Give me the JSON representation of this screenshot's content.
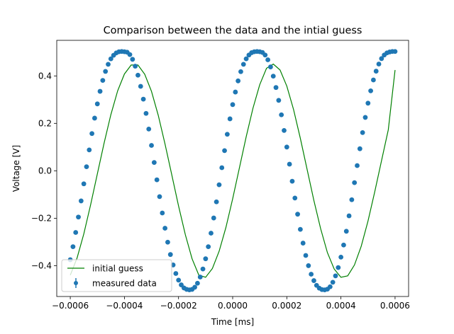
{
  "chart_data": {
    "type": "line",
    "title": "Comparison between the data and the intial guess",
    "xlabel": "Time [ms]",
    "ylabel": "Voltage [V]",
    "xlim": [
      -0.00065,
      0.00065
    ],
    "ylim": [
      -0.53,
      0.55
    ],
    "xticks": [
      -0.0006,
      -0.0004,
      -0.0002,
      0.0,
      0.0002,
      0.0004,
      0.0006
    ],
    "xtick_labels": [
      "−0.0006",
      "−0.0004",
      "−0.0002",
      "0.0000",
      "0.0002",
      "0.0004",
      "0.0006"
    ],
    "yticks": [
      -0.4,
      -0.2,
      0.0,
      0.2,
      0.4
    ],
    "ytick_labels": [
      "−0.4",
      "−0.2",
      "0.0",
      "0.2",
      "0.4"
    ],
    "grid": false,
    "legend_position": "lower-left",
    "series": [
      {
        "name": "initial guess",
        "kind": "line",
        "color": "#008000",
        "x": [
          -0.0006,
          -0.000575,
          -0.00055,
          -0.000525,
          -0.0005,
          -0.000475,
          -0.00045,
          -0.000425,
          -0.0004,
          -0.000375,
          -0.00035,
          -0.000325,
          -0.0003,
          -0.000275,
          -0.00025,
          -0.000225,
          -0.0002,
          -0.000175,
          -0.00015,
          -0.000125,
          -0.0001,
          -7.5e-05,
          -5e-05,
          -2.5e-05,
          0.0,
          2.5e-05,
          5e-05,
          7.5e-05,
          0.0001,
          0.000125,
          0.00015,
          0.000175,
          0.0002,
          0.000225,
          0.00025,
          0.000275,
          0.0003,
          0.000325,
          0.00035,
          0.000375,
          0.0004,
          0.000425,
          0.00045,
          0.000475,
          0.0005,
          0.000525,
          0.00055,
          0.000575,
          0.0006
        ],
        "y": [
          -0.44,
          -0.368,
          -0.266,
          -0.144,
          -0.013,
          0.117,
          0.237,
          0.337,
          0.408,
          0.446,
          0.446,
          0.407,
          0.335,
          0.234,
          0.113,
          -0.017,
          -0.148,
          -0.269,
          -0.371,
          -0.44,
          -0.449,
          -0.412,
          -0.339,
          -0.239,
          -0.118,
          0.013,
          0.144,
          0.264,
          0.363,
          0.432,
          0.45,
          0.425,
          0.357,
          0.258,
          0.137,
          0.006,
          -0.125,
          -0.244,
          -0.345,
          -0.414,
          -0.449,
          -0.443,
          -0.397,
          -0.318,
          -0.212,
          -0.088,
          0.043,
          0.173,
          0.425
        ]
      },
      {
        "name": "measured data",
        "kind": "errorbar-points",
        "color": "#1f77b4",
        "x": [
          -0.0006,
          -0.00059,
          -0.00058,
          -0.00057,
          -0.00056,
          -0.00055,
          -0.00054,
          -0.00053,
          -0.00052,
          -0.00051,
          -0.0005,
          -0.00049,
          -0.00048,
          -0.00047,
          -0.00046,
          -0.00045,
          -0.00044,
          -0.00043,
          -0.00042,
          -0.00041,
          -0.0004,
          -0.00039,
          -0.00038,
          -0.00037,
          -0.00036,
          -0.00035,
          -0.00034,
          -0.00033,
          -0.00032,
          -0.00031,
          -0.0003,
          -0.00029,
          -0.00028,
          -0.00027,
          -0.00026,
          -0.00025,
          -0.00024,
          -0.00023,
          -0.00022,
          -0.00021,
          -0.0002,
          -0.00019,
          -0.00018,
          -0.00017,
          -0.00016,
          -0.00015,
          -0.00014,
          -0.00013,
          -0.00012,
          -0.00011,
          -0.0001,
          -9e-05,
          -8e-05,
          -7e-05,
          -6e-05,
          -5e-05,
          -4e-05,
          -3e-05,
          -2e-05,
          -1e-05,
          0.0,
          1e-05,
          2e-05,
          3e-05,
          4e-05,
          5e-05,
          6e-05,
          7e-05,
          8e-05,
          9e-05,
          0.0001,
          0.00011,
          0.00012,
          0.00013,
          0.00014,
          0.00015,
          0.00016,
          0.00017,
          0.00018,
          0.00019,
          0.0002,
          0.00021,
          0.00022,
          0.00023,
          0.00024,
          0.00025,
          0.00026,
          0.00027,
          0.00028,
          0.00029,
          0.0003,
          0.00031,
          0.00032,
          0.00033,
          0.00034,
          0.00035,
          0.00036,
          0.00037,
          0.00038,
          0.00039,
          0.0004,
          0.00041,
          0.00042,
          0.00043,
          0.00044,
          0.00045,
          0.00046,
          0.00047,
          0.00048,
          0.00049,
          0.0005,
          0.00051,
          0.00052,
          0.00053,
          0.00054,
          0.00055,
          0.00056,
          0.00057,
          0.00058,
          0.00059,
          0.0006
        ],
        "y": [
          -0.375,
          -0.32,
          -0.26,
          -0.195,
          -0.127,
          -0.055,
          0.017,
          0.088,
          0.157,
          0.222,
          0.282,
          0.335,
          0.381,
          0.419,
          0.449,
          0.472,
          0.487,
          0.497,
          0.502,
          0.503,
          0.502,
          0.5,
          0.49,
          0.47,
          0.441,
          0.403,
          0.356,
          0.302,
          0.242,
          0.176,
          0.107,
          0.035,
          -0.038,
          -0.109,
          -0.178,
          -0.242,
          -0.301,
          -0.353,
          -0.397,
          -0.433,
          -0.461,
          -0.481,
          -0.494,
          -0.5,
          -0.502,
          -0.5,
          -0.491,
          -0.474,
          -0.448,
          -0.414,
          -0.371,
          -0.32,
          -0.263,
          -0.199,
          -0.131,
          -0.059,
          0.013,
          0.085,
          0.154,
          0.219,
          0.279,
          0.332,
          0.379,
          0.418,
          0.449,
          0.472,
          0.488,
          0.498,
          0.502,
          0.503,
          0.502,
          0.499,
          0.488,
          0.468,
          0.438,
          0.399,
          0.351,
          0.297,
          0.236,
          0.17,
          0.1,
          0.028,
          -0.044,
          -0.115,
          -0.183,
          -0.247,
          -0.305,
          -0.357,
          -0.4,
          -0.436,
          -0.463,
          -0.483,
          -0.495,
          -0.501,
          -0.502,
          -0.499,
          -0.489,
          -0.47,
          -0.443,
          -0.408,
          -0.364,
          -0.313,
          -0.255,
          -0.19,
          -0.122,
          -0.05,
          0.022,
          0.093,
          0.161,
          0.225,
          0.285,
          0.337,
          0.383,
          0.42,
          0.45,
          0.473,
          0.488,
          0.497,
          0.501,
          0.503,
          0.503
        ]
      }
    ]
  }
}
